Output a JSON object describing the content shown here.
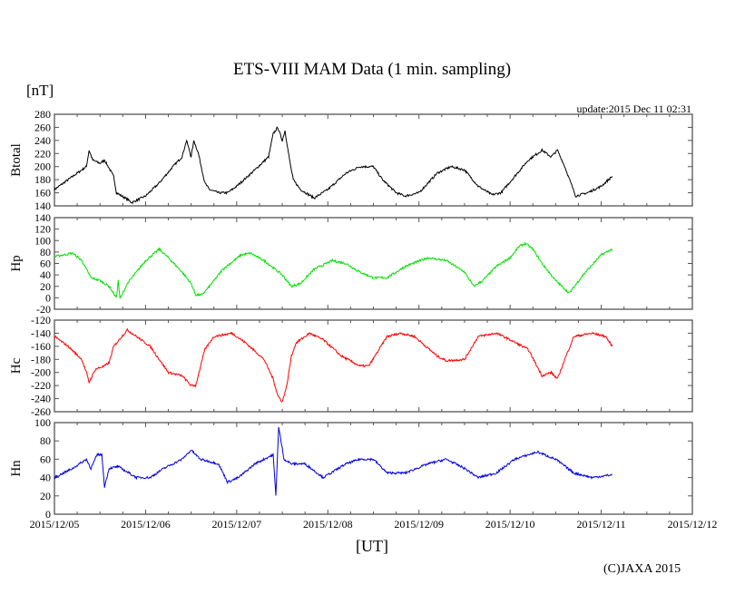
{
  "chart_data": {
    "type": "line",
    "title": "ETS-VIII MAM Data (1 min. sampling)",
    "unit_label": "[nT]",
    "update_text": "update:2015 Dec 11 02:31",
    "xlabel": "[UT]",
    "copyright": "(C)JAXA 2015",
    "x_unit": "days since 2015/12/05 00:00 UT",
    "xlim": [
      0,
      7
    ],
    "x_ticks": [
      "2015/12/05",
      "2015/12/06",
      "2015/12/07",
      "2015/12/08",
      "2015/12/09",
      "2015/12/10",
      "2015/12/11",
      "2015/12/12"
    ],
    "panels": [
      {
        "name": "Btotal",
        "color": "#000000",
        "ylim": [
          140,
          280
        ],
        "yticks": [
          "280",
          "260",
          "240",
          "220",
          "200",
          "180",
          "160",
          "140"
        ],
        "points": [
          [
            0,
            165
          ],
          [
            0.15,
            180
          ],
          [
            0.3,
            195
          ],
          [
            0.35,
            200
          ],
          [
            0.38,
            225
          ],
          [
            0.42,
            210
          ],
          [
            0.5,
            205
          ],
          [
            0.55,
            210
          ],
          [
            0.65,
            185
          ],
          [
            0.68,
            160
          ],
          [
            0.8,
            150
          ],
          [
            0.85,
            145
          ],
          [
            1.0,
            155
          ],
          [
            1.15,
            175
          ],
          [
            1.3,
            200
          ],
          [
            1.4,
            215
          ],
          [
            1.45,
            240
          ],
          [
            1.5,
            215
          ],
          [
            1.53,
            240
          ],
          [
            1.58,
            220
          ],
          [
            1.65,
            175
          ],
          [
            1.7,
            165
          ],
          [
            1.8,
            160
          ],
          [
            1.9,
            160
          ],
          [
            2.0,
            170
          ],
          [
            2.2,
            195
          ],
          [
            2.35,
            215
          ],
          [
            2.4,
            250
          ],
          [
            2.45,
            260
          ],
          [
            2.5,
            240
          ],
          [
            2.53,
            255
          ],
          [
            2.58,
            210
          ],
          [
            2.62,
            180
          ],
          [
            2.7,
            165
          ],
          [
            2.85,
            152
          ],
          [
            3.0,
            165
          ],
          [
            3.2,
            190
          ],
          [
            3.35,
            200
          ],
          [
            3.5,
            200
          ],
          [
            3.6,
            180
          ],
          [
            3.75,
            160
          ],
          [
            3.85,
            155
          ],
          [
            4.0,
            160
          ],
          [
            4.2,
            190
          ],
          [
            4.35,
            200
          ],
          [
            4.5,
            195
          ],
          [
            4.65,
            170
          ],
          [
            4.8,
            157
          ],
          [
            4.9,
            160
          ],
          [
            5.05,
            185
          ],
          [
            5.2,
            210
          ],
          [
            5.35,
            225
          ],
          [
            5.45,
            215
          ],
          [
            5.52,
            225
          ],
          [
            5.6,
            200
          ],
          [
            5.72,
            155
          ],
          [
            5.85,
            160
          ],
          [
            6.0,
            170
          ],
          [
            6.12,
            185
          ]
        ]
      },
      {
        "name": "Hp",
        "color": "#00e000",
        "ylim": [
          -20,
          140
        ],
        "yticks": [
          "140",
          "120",
          "100",
          "80",
          "60",
          "40",
          "20",
          "0",
          "-20"
        ],
        "points": [
          [
            0,
            72
          ],
          [
            0.2,
            78
          ],
          [
            0.3,
            65
          ],
          [
            0.4,
            35
          ],
          [
            0.5,
            30
          ],
          [
            0.6,
            20
          ],
          [
            0.68,
            0
          ],
          [
            0.7,
            30
          ],
          [
            0.72,
            -2
          ],
          [
            0.8,
            25
          ],
          [
            1.0,
            65
          ],
          [
            1.15,
            85
          ],
          [
            1.25,
            70
          ],
          [
            1.4,
            45
          ],
          [
            1.5,
            25
          ],
          [
            1.55,
            5
          ],
          [
            1.62,
            5
          ],
          [
            1.7,
            20
          ],
          [
            1.85,
            50
          ],
          [
            2.05,
            75
          ],
          [
            2.15,
            78
          ],
          [
            2.3,
            65
          ],
          [
            2.5,
            40
          ],
          [
            2.6,
            20
          ],
          [
            2.7,
            25
          ],
          [
            2.85,
            50
          ],
          [
            3.05,
            65
          ],
          [
            3.2,
            60
          ],
          [
            3.35,
            45
          ],
          [
            3.5,
            35
          ],
          [
            3.65,
            35
          ],
          [
            3.85,
            55
          ],
          [
            4.1,
            70
          ],
          [
            4.3,
            65
          ],
          [
            4.5,
            45
          ],
          [
            4.6,
            20
          ],
          [
            4.7,
            30
          ],
          [
            4.85,
            55
          ],
          [
            5.0,
            70
          ],
          [
            5.1,
            90
          ],
          [
            5.17,
            95
          ],
          [
            5.25,
            85
          ],
          [
            5.35,
            60
          ],
          [
            5.5,
            30
          ],
          [
            5.65,
            8
          ],
          [
            5.8,
            40
          ],
          [
            6.0,
            75
          ],
          [
            6.12,
            85
          ]
        ]
      },
      {
        "name": "Hc",
        "color": "#ff0000",
        "ylim": [
          -260,
          -120
        ],
        "yticks": [
          "-120",
          "-140",
          "-160",
          "-180",
          "-200",
          "-220",
          "-240",
          "-260"
        ],
        "points": [
          [
            0,
            -145
          ],
          [
            0.15,
            -160
          ],
          [
            0.3,
            -180
          ],
          [
            0.35,
            -200
          ],
          [
            0.38,
            -215
          ],
          [
            0.45,
            -195
          ],
          [
            0.55,
            -190
          ],
          [
            0.6,
            -185
          ],
          [
            0.65,
            -160
          ],
          [
            0.8,
            -135
          ],
          [
            0.95,
            -150
          ],
          [
            1.05,
            -160
          ],
          [
            1.15,
            -180
          ],
          [
            1.25,
            -200
          ],
          [
            1.4,
            -205
          ],
          [
            1.5,
            -220
          ],
          [
            1.55,
            -220
          ],
          [
            1.65,
            -165
          ],
          [
            1.75,
            -145
          ],
          [
            1.95,
            -140
          ],
          [
            2.1,
            -155
          ],
          [
            2.3,
            -180
          ],
          [
            2.4,
            -210
          ],
          [
            2.45,
            -235
          ],
          [
            2.5,
            -245
          ],
          [
            2.55,
            -220
          ],
          [
            2.6,
            -175
          ],
          [
            2.65,
            -155
          ],
          [
            2.8,
            -140
          ],
          [
            2.95,
            -150
          ],
          [
            3.15,
            -175
          ],
          [
            3.35,
            -190
          ],
          [
            3.45,
            -190
          ],
          [
            3.65,
            -145
          ],
          [
            3.8,
            -140
          ],
          [
            3.95,
            -145
          ],
          [
            4.2,
            -175
          ],
          [
            4.3,
            -182
          ],
          [
            4.5,
            -180
          ],
          [
            4.65,
            -145
          ],
          [
            4.85,
            -140
          ],
          [
            5.0,
            -150
          ],
          [
            5.2,
            -165
          ],
          [
            5.35,
            -205
          ],
          [
            5.45,
            -200
          ],
          [
            5.52,
            -210
          ],
          [
            5.6,
            -180
          ],
          [
            5.7,
            -145
          ],
          [
            5.9,
            -140
          ],
          [
            6.05,
            -145
          ],
          [
            6.12,
            -160
          ]
        ]
      },
      {
        "name": "Hn",
        "color": "#0000e0",
        "ylim": [
          0,
          100
        ],
        "yticks": [
          "100",
          "80",
          "60",
          "40",
          "20",
          "0"
        ],
        "points": [
          [
            0,
            40
          ],
          [
            0.2,
            50
          ],
          [
            0.35,
            60
          ],
          [
            0.4,
            50
          ],
          [
            0.47,
            65
          ],
          [
            0.52,
            65
          ],
          [
            0.55,
            30
          ],
          [
            0.6,
            50
          ],
          [
            0.7,
            52
          ],
          [
            0.9,
            40
          ],
          [
            1.05,
            40
          ],
          [
            1.2,
            50
          ],
          [
            1.3,
            55
          ],
          [
            1.4,
            60
          ],
          [
            1.5,
            70
          ],
          [
            1.6,
            60
          ],
          [
            1.8,
            55
          ],
          [
            1.9,
            35
          ],
          [
            2.02,
            40
          ],
          [
            2.2,
            55
          ],
          [
            2.4,
            65
          ],
          [
            2.43,
            20
          ],
          [
            2.46,
            95
          ],
          [
            2.52,
            60
          ],
          [
            2.6,
            55
          ],
          [
            2.75,
            55
          ],
          [
            2.95,
            40
          ],
          [
            3.2,
            55
          ],
          [
            3.35,
            60
          ],
          [
            3.5,
            60
          ],
          [
            3.65,
            45
          ],
          [
            3.85,
            45
          ],
          [
            4.1,
            55
          ],
          [
            4.3,
            60
          ],
          [
            4.5,
            50
          ],
          [
            4.65,
            40
          ],
          [
            4.85,
            45
          ],
          [
            5.05,
            60
          ],
          [
            5.3,
            68
          ],
          [
            5.5,
            60
          ],
          [
            5.7,
            45
          ],
          [
            5.9,
            40
          ],
          [
            6.12,
            43
          ]
        ]
      }
    ]
  }
}
